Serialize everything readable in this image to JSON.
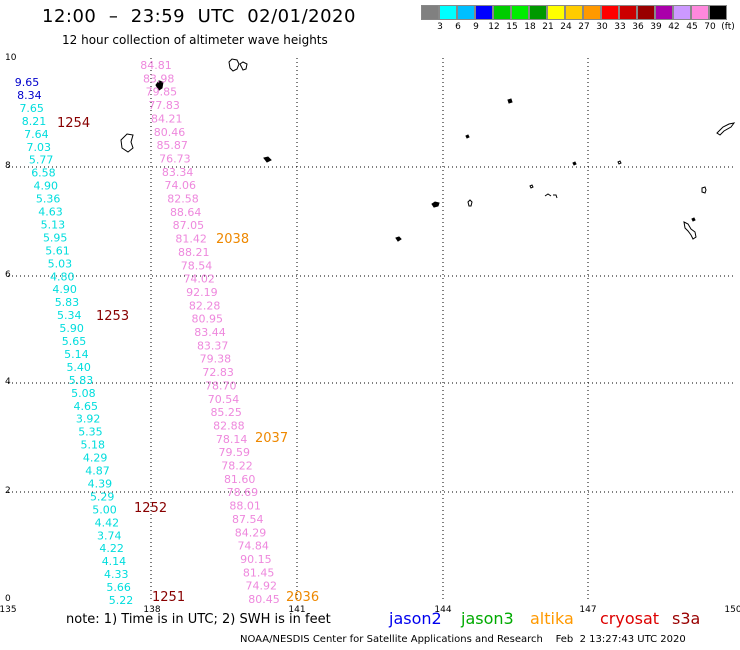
{
  "header": {
    "title": "12:00  –  23:59  UTC  02/01/2020",
    "subtitle": "12 hour collection of altimeter wave heights"
  },
  "legend": {
    "colors": [
      "#808080",
      "#00ffff",
      "#00bfff",
      "#0000ff",
      "#00cc00",
      "#00ee00",
      "#009900",
      "#ffff00",
      "#ffcc00",
      "#ff9900",
      "#ff0000",
      "#cc0000",
      "#990000",
      "#aa00aa",
      "#cc99ff",
      "#ff88dd",
      "#000000"
    ],
    "labels": [
      "3",
      "6",
      "9",
      "12",
      "15",
      "18",
      "21",
      "24",
      "27",
      "30",
      "33",
      "36",
      "39",
      "42",
      "45",
      "70",
      "(ft)"
    ]
  },
  "axes": {
    "x_ticks": [
      "135",
      "138",
      "141",
      "144",
      "147",
      "150"
    ],
    "y_ticks": [
      "0",
      "2",
      "4",
      "6",
      "8",
      "10"
    ]
  },
  "tracks": [
    {
      "name": "jason3",
      "color": "#00dddd",
      "values": [
        "9.65",
        "8.34",
        "7.65",
        "8.21",
        "7.64",
        "7.03",
        "5.77",
        "6.58",
        "4.90",
        "5.36",
        "4.63",
        "5.13",
        "5.95",
        "5.61",
        "5.03",
        "4.80",
        "4.90",
        "5.83",
        "5.34",
        "5.90",
        "5.65",
        "5.14",
        "5.40",
        "5.83",
        "5.08",
        "4.65",
        "3.92",
        "5.35",
        "5.18",
        "4.29",
        "4.87",
        "4.39",
        "5.29",
        "5.00",
        "4.42",
        "3.74",
        "4.22",
        "4.14",
        "4.33",
        "5.66",
        "5.22"
      ]
    },
    {
      "name": "cryosat",
      "color": "#ee88dd",
      "values": [
        "84.81",
        "83.98",
        "79.85",
        "77.83",
        "84.21",
        "80.46",
        "85.87",
        "76.73",
        "83.34",
        "74.06",
        "82.58",
        "88.64",
        "87.05",
        "81.42",
        "88.21",
        "78.54",
        "74.02",
        "92.19",
        "82.28",
        "80.95",
        "83.44",
        "83.37",
        "79.38",
        "72.83",
        "78.70",
        "70.54",
        "85.25",
        "82.88",
        "78.14",
        "79.59",
        "78.22",
        "81.60",
        "78.69",
        "88.01",
        "87.54",
        "84.29",
        "74.84",
        "90.15",
        "81.45",
        "74.92",
        "80.45"
      ]
    }
  ],
  "time_labels": [
    "1254",
    "1253",
    "1252",
    "1251",
    "2038",
    "2037",
    "2036"
  ],
  "footer": {
    "note": "note:  1) Time is in UTC;  2) SWH is in feet",
    "satellites": [
      {
        "name": "jason2",
        "color": "#0000ee"
      },
      {
        "name": "jason3",
        "color": "#00aa00"
      },
      {
        "name": "altika",
        "color": "#ff9900"
      },
      {
        "name": "cryosat",
        "color": "#dd0000"
      },
      {
        "name": "s3a",
        "color": "#990000"
      }
    ],
    "credit": "NOAA/NESDIS Center for Satellite Applications and Research    Feb  2 13:27:43 UTC 2020"
  }
}
